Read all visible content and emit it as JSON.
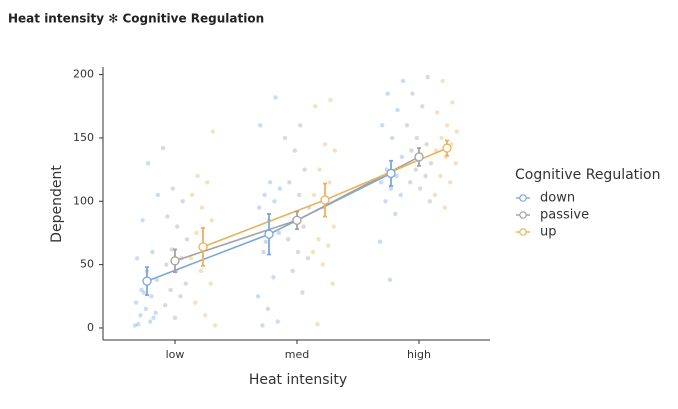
{
  "chart_data": {
    "type": "point-line",
    "title": "Heat intensity ✻ Cognitive Regulation",
    "x_label": "Heat intensity",
    "y_label": "Dependent",
    "categories": [
      "low",
      "med",
      "high"
    ],
    "ylim": [
      -9.5,
      206
    ],
    "yticks": [
      0,
      50,
      100,
      150,
      200
    ],
    "legend_title": "Cognitive Regulation",
    "legend": "right",
    "series": [
      {
        "name": "down",
        "color": "#7ba7dc",
        "values": [
          37,
          74,
          122
        ],
        "errors": [
          11,
          16,
          10
        ],
        "raw": [
          [
            2,
            5,
            10,
            12,
            15,
            20,
            25,
            30,
            38,
            45,
            55,
            60,
            85,
            105,
            130,
            3,
            8,
            28
          ],
          [
            2,
            5,
            15,
            25,
            40,
            60,
            75,
            85,
            95,
            100,
            105,
            110,
            115,
            160,
            182,
            68
          ],
          [
            38,
            68,
            90,
            100,
            105,
            110,
            115,
            120,
            125,
            135,
            150,
            160,
            172,
            185,
            195
          ]
        ]
      },
      {
        "name": "passive",
        "color": "#a3a3a3",
        "values": [
          53,
          85,
          135
        ],
        "errors": [
          9,
          7,
          7
        ],
        "raw": [
          [
            8,
            18,
            25,
            30,
            35,
            45,
            50,
            55,
            62,
            70,
            80,
            88,
            100,
            110,
            142
          ],
          [
            28,
            45,
            55,
            60,
            70,
            80,
            85,
            95,
            105,
            115,
            125,
            140,
            150,
            160
          ],
          [
            100,
            110,
            115,
            120,
            125,
            130,
            135,
            140,
            145,
            150,
            160,
            175,
            185,
            198
          ]
        ]
      },
      {
        "name": "up",
        "color": "#e9b35e",
        "values": [
          64,
          101,
          142
        ],
        "errors": [
          15,
          13,
          6
        ],
        "raw": [
          [
            2,
            10,
            20,
            35,
            45,
            55,
            65,
            75,
            85,
            95,
            105,
            115,
            120,
            155
          ],
          [
            3,
            35,
            50,
            60,
            65,
            70,
            80,
            95,
            105,
            115,
            125,
            140,
            145,
            175,
            180
          ],
          [
            95,
            105,
            115,
            120,
            130,
            135,
            140,
            145,
            150,
            155,
            160,
            170,
            178,
            195
          ]
        ]
      }
    ]
  }
}
